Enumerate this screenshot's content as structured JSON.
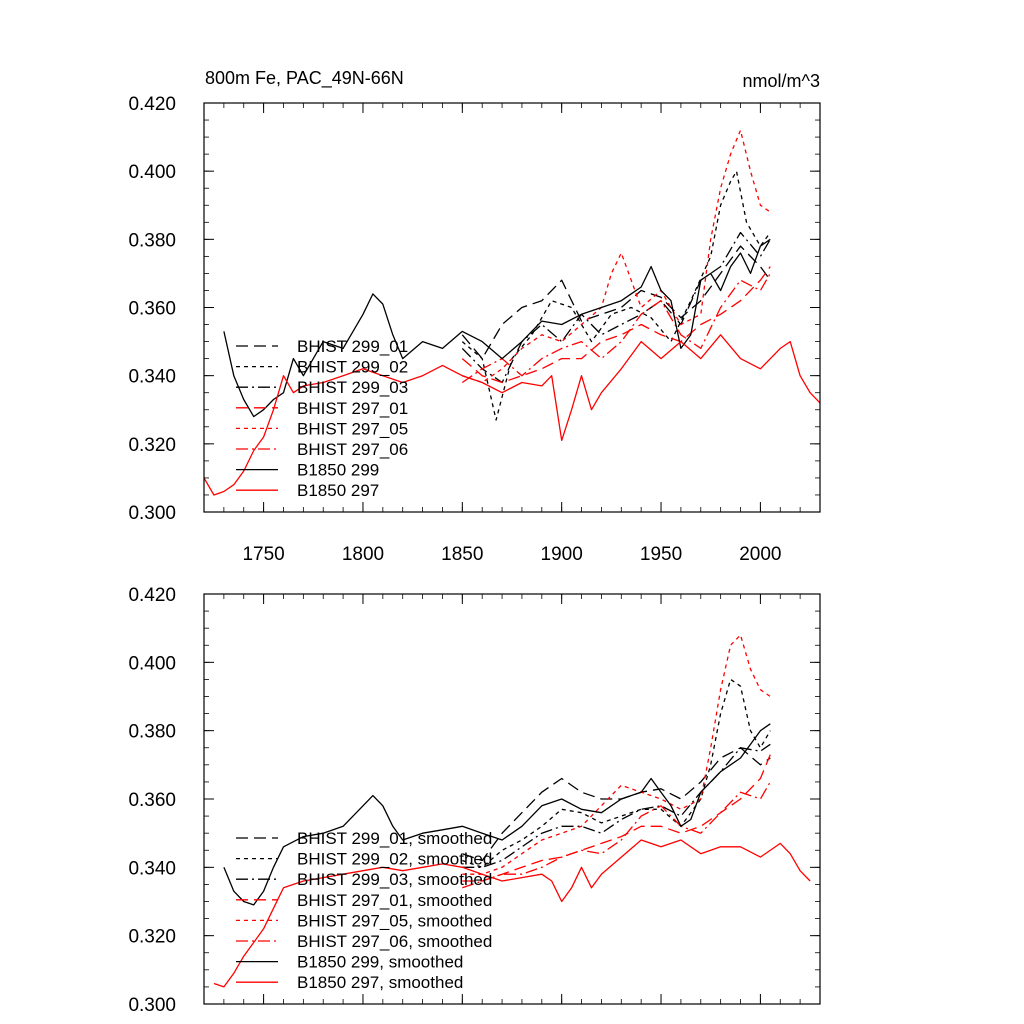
{
  "colors": {
    "black": "#000000",
    "red": "#ff0000"
  },
  "chart_data": [
    {
      "type": "line",
      "title": "800m Fe, PAC_49N-66N",
      "units": "nmol/m^3",
      "xlabel": "",
      "ylabel": "",
      "xlim": [
        1720,
        2030
      ],
      "ylim": [
        0.3,
        0.42
      ],
      "x_ticks": [
        1750,
        1800,
        1850,
        1900,
        1950,
        2000
      ],
      "y_ticks": [
        "0.300",
        "0.320",
        "0.340",
        "0.360",
        "0.380",
        "0.400",
        "0.420"
      ],
      "grid": false,
      "legend": "left",
      "series": [
        {
          "name": "BHIST 299_01",
          "color": "#000000",
          "dash": "long",
          "x": [
            1850,
            1860,
            1870,
            1880,
            1890,
            1900,
            1910,
            1920,
            1930,
            1940,
            1950,
            1960,
            1970,
            1980,
            1990,
            2000,
            2005
          ],
          "y": [
            0.352,
            0.345,
            0.355,
            0.36,
            0.362,
            0.368,
            0.356,
            0.358,
            0.36,
            0.365,
            0.363,
            0.357,
            0.362,
            0.37,
            0.378,
            0.372,
            0.368
          ]
        },
        {
          "name": "BHIST 299_02",
          "color": "#000000",
          "dash": "short",
          "x": [
            1850,
            1860,
            1867,
            1875,
            1885,
            1895,
            1905,
            1915,
            1925,
            1935,
            1945,
            1955,
            1965,
            1975,
            1980,
            1985,
            1988,
            1993,
            2000,
            2005
          ],
          "y": [
            0.35,
            0.345,
            0.327,
            0.345,
            0.352,
            0.362,
            0.36,
            0.35,
            0.358,
            0.36,
            0.357,
            0.35,
            0.362,
            0.375,
            0.39,
            0.397,
            0.4,
            0.385,
            0.378,
            0.382
          ]
        },
        {
          "name": "BHIST 299_03",
          "color": "#000000",
          "dash": "dashdot",
          "x": [
            1850,
            1860,
            1870,
            1880,
            1890,
            1900,
            1910,
            1920,
            1930,
            1940,
            1950,
            1960,
            1970,
            1980,
            1990,
            2000,
            2005
          ],
          "y": [
            0.348,
            0.342,
            0.338,
            0.35,
            0.355,
            0.35,
            0.358,
            0.352,
            0.355,
            0.358,
            0.362,
            0.355,
            0.368,
            0.372,
            0.382,
            0.375,
            0.38
          ]
        },
        {
          "name": "BHIST 297_01",
          "color": "#ff0000",
          "dash": "long",
          "x": [
            1850,
            1860,
            1870,
            1880,
            1890,
            1900,
            1910,
            1920,
            1930,
            1940,
            1950,
            1960,
            1970,
            1980,
            1990,
            2000,
            2005
          ],
          "y": [
            0.345,
            0.34,
            0.338,
            0.34,
            0.342,
            0.345,
            0.345,
            0.35,
            0.352,
            0.355,
            0.352,
            0.35,
            0.355,
            0.358,
            0.362,
            0.368,
            0.372
          ]
        },
        {
          "name": "BHIST 297_05",
          "color": "#ff0000",
          "dash": "short",
          "x": [
            1850,
            1860,
            1870,
            1880,
            1890,
            1900,
            1910,
            1920,
            1925,
            1930,
            1935,
            1940,
            1950,
            1960,
            1970,
            1975,
            1980,
            1985,
            1990,
            1995,
            2000,
            2005
          ],
          "y": [
            0.34,
            0.338,
            0.342,
            0.348,
            0.352,
            0.35,
            0.355,
            0.36,
            0.37,
            0.376,
            0.368,
            0.36,
            0.365,
            0.355,
            0.358,
            0.38,
            0.395,
            0.405,
            0.412,
            0.4,
            0.39,
            0.388
          ]
        },
        {
          "name": "BHIST 297_06",
          "color": "#ff0000",
          "dash": "dashdot",
          "x": [
            1850,
            1860,
            1870,
            1880,
            1890,
            1900,
            1910,
            1920,
            1930,
            1940,
            1950,
            1960,
            1970,
            1980,
            1990,
            2000,
            2005
          ],
          "y": [
            0.338,
            0.342,
            0.345,
            0.34,
            0.345,
            0.348,
            0.35,
            0.345,
            0.35,
            0.358,
            0.362,
            0.352,
            0.348,
            0.36,
            0.368,
            0.365,
            0.37
          ]
        },
        {
          "name": "B1850 299",
          "color": "#000000",
          "dash": "solid",
          "x": [
            1730,
            1735,
            1740,
            1745,
            1750,
            1755,
            1760,
            1765,
            1770,
            1775,
            1780,
            1790,
            1800,
            1805,
            1810,
            1815,
            1820,
            1830,
            1840,
            1850,
            1860,
            1870,
            1880,
            1890,
            1900,
            1910,
            1920,
            1930,
            1940,
            1945,
            1950,
            1955,
            1960,
            1965,
            1970,
            1975,
            1980,
            1985,
            1990,
            1995,
            2000,
            2005
          ],
          "y": [
            0.353,
            0.34,
            0.333,
            0.328,
            0.33,
            0.333,
            0.335,
            0.345,
            0.34,
            0.345,
            0.35,
            0.348,
            0.358,
            0.364,
            0.361,
            0.352,
            0.345,
            0.35,
            0.348,
            0.353,
            0.35,
            0.345,
            0.35,
            0.356,
            0.355,
            0.358,
            0.36,
            0.362,
            0.366,
            0.372,
            0.365,
            0.362,
            0.348,
            0.352,
            0.368,
            0.37,
            0.365,
            0.372,
            0.376,
            0.37,
            0.378,
            0.38
          ]
        },
        {
          "name": "B1850 297",
          "color": "#ff0000",
          "dash": "solid",
          "x": [
            1720,
            1725,
            1730,
            1735,
            1740,
            1745,
            1750,
            1755,
            1760,
            1765,
            1770,
            1780,
            1790,
            1800,
            1810,
            1820,
            1830,
            1840,
            1850,
            1860,
            1870,
            1880,
            1890,
            1895,
            1900,
            1905,
            1910,
            1915,
            1920,
            1930,
            1940,
            1950,
            1960,
            1970,
            1980,
            1990,
            2000,
            2010,
            2015,
            2020,
            2025,
            2030
          ],
          "y": [
            0.31,
            0.305,
            0.306,
            0.308,
            0.312,
            0.318,
            0.322,
            0.33,
            0.34,
            0.335,
            0.337,
            0.338,
            0.34,
            0.342,
            0.34,
            0.338,
            0.34,
            0.343,
            0.34,
            0.338,
            0.335,
            0.338,
            0.337,
            0.34,
            0.321,
            0.33,
            0.34,
            0.33,
            0.335,
            0.342,
            0.35,
            0.345,
            0.35,
            0.345,
            0.352,
            0.345,
            0.342,
            0.348,
            0.35,
            0.34,
            0.335,
            0.332
          ]
        }
      ]
    },
    {
      "type": "line",
      "xlim": [
        1720,
        2030
      ],
      "ylim": [
        0.3,
        0.42
      ],
      "y_ticks": [
        "0.300",
        "0.320",
        "0.340",
        "0.360",
        "0.380",
        "0.400",
        "0.420"
      ],
      "grid": false,
      "legend": "left",
      "series": [
        {
          "name": "BHIST 299_01, smoothed",
          "color": "#000000",
          "dash": "long",
          "x": [
            1850,
            1860,
            1870,
            1880,
            1890,
            1900,
            1910,
            1920,
            1930,
            1940,
            1950,
            1960,
            1970,
            1980,
            1990,
            2000,
            2005
          ],
          "y": [
            0.344,
            0.342,
            0.35,
            0.356,
            0.362,
            0.366,
            0.362,
            0.36,
            0.36,
            0.362,
            0.363,
            0.36,
            0.365,
            0.372,
            0.375,
            0.37,
            0.372
          ]
        },
        {
          "name": "BHIST 299_02, smoothed",
          "color": "#000000",
          "dash": "short",
          "x": [
            1850,
            1860,
            1870,
            1880,
            1890,
            1900,
            1910,
            1920,
            1930,
            1940,
            1950,
            1960,
            1970,
            1975,
            1980,
            1985,
            1990,
            1995,
            2000,
            2005
          ],
          "y": [
            0.342,
            0.34,
            0.345,
            0.348,
            0.352,
            0.357,
            0.356,
            0.353,
            0.355,
            0.357,
            0.357,
            0.352,
            0.36,
            0.37,
            0.385,
            0.395,
            0.393,
            0.38,
            0.375,
            0.38
          ]
        },
        {
          "name": "BHIST 299_03, smoothed",
          "color": "#000000",
          "dash": "dashdot",
          "x": [
            1850,
            1860,
            1870,
            1880,
            1890,
            1900,
            1910,
            1920,
            1930,
            1940,
            1950,
            1960,
            1970,
            1980,
            1990,
            2000,
            2005
          ],
          "y": [
            0.34,
            0.34,
            0.342,
            0.346,
            0.35,
            0.352,
            0.352,
            0.35,
            0.354,
            0.357,
            0.358,
            0.355,
            0.362,
            0.368,
            0.375,
            0.374,
            0.376
          ]
        },
        {
          "name": "BHIST 297_01, smoothed",
          "color": "#ff0000",
          "dash": "long",
          "x": [
            1850,
            1860,
            1870,
            1880,
            1890,
            1900,
            1910,
            1920,
            1930,
            1940,
            1950,
            1960,
            1970,
            1980,
            1990,
            2000,
            2005
          ],
          "y": [
            0.336,
            0.336,
            0.338,
            0.34,
            0.342,
            0.343,
            0.345,
            0.347,
            0.349,
            0.352,
            0.352,
            0.35,
            0.352,
            0.356,
            0.36,
            0.366,
            0.373
          ]
        },
        {
          "name": "BHIST 297_05, smoothed",
          "color": "#ff0000",
          "dash": "short",
          "x": [
            1850,
            1860,
            1870,
            1880,
            1890,
            1900,
            1910,
            1920,
            1930,
            1940,
            1950,
            1960,
            1970,
            1975,
            1980,
            1985,
            1990,
            1995,
            2000,
            2005
          ],
          "y": [
            0.338,
            0.338,
            0.34,
            0.344,
            0.348,
            0.35,
            0.352,
            0.358,
            0.364,
            0.362,
            0.36,
            0.357,
            0.36,
            0.375,
            0.392,
            0.405,
            0.408,
            0.398,
            0.392,
            0.39
          ]
        },
        {
          "name": "BHIST 297_06, smoothed",
          "color": "#ff0000",
          "dash": "dashdot",
          "x": [
            1850,
            1860,
            1870,
            1880,
            1890,
            1900,
            1910,
            1920,
            1930,
            1940,
            1950,
            1960,
            1970,
            1980,
            1990,
            2000,
            2005
          ],
          "y": [
            0.334,
            0.336,
            0.338,
            0.338,
            0.34,
            0.343,
            0.345,
            0.344,
            0.348,
            0.355,
            0.358,
            0.352,
            0.35,
            0.356,
            0.362,
            0.36,
            0.365
          ]
        },
        {
          "name": "B1850 299, smoothed",
          "color": "#000000",
          "dash": "solid",
          "x": [
            1730,
            1735,
            1740,
            1745,
            1750,
            1755,
            1760,
            1770,
            1780,
            1790,
            1800,
            1805,
            1810,
            1815,
            1820,
            1830,
            1840,
            1850,
            1860,
            1870,
            1880,
            1890,
            1900,
            1910,
            1920,
            1930,
            1940,
            1945,
            1950,
            1955,
            1960,
            1965,
            1970,
            1980,
            1990,
            2000,
            2005
          ],
          "y": [
            0.34,
            0.333,
            0.33,
            0.329,
            0.333,
            0.34,
            0.346,
            0.349,
            0.35,
            0.352,
            0.358,
            0.361,
            0.358,
            0.352,
            0.348,
            0.35,
            0.351,
            0.352,
            0.35,
            0.348,
            0.352,
            0.358,
            0.36,
            0.357,
            0.356,
            0.36,
            0.362,
            0.366,
            0.362,
            0.358,
            0.352,
            0.354,
            0.362,
            0.368,
            0.372,
            0.38,
            0.382
          ]
        },
        {
          "name": "B1850 297, smoothed",
          "color": "#ff0000",
          "dash": "solid",
          "x": [
            1725,
            1730,
            1735,
            1740,
            1745,
            1750,
            1755,
            1760,
            1770,
            1780,
            1790,
            1800,
            1810,
            1820,
            1830,
            1840,
            1850,
            1860,
            1870,
            1880,
            1890,
            1895,
            1900,
            1905,
            1910,
            1915,
            1920,
            1930,
            1940,
            1950,
            1960,
            1970,
            1980,
            1990,
            2000,
            2010,
            2015,
            2020,
            2025
          ],
          "y": [
            0.306,
            0.305,
            0.309,
            0.314,
            0.318,
            0.322,
            0.328,
            0.334,
            0.336,
            0.337,
            0.338,
            0.339,
            0.34,
            0.339,
            0.34,
            0.341,
            0.34,
            0.338,
            0.336,
            0.337,
            0.338,
            0.336,
            0.33,
            0.334,
            0.34,
            0.334,
            0.338,
            0.343,
            0.348,
            0.346,
            0.348,
            0.344,
            0.346,
            0.346,
            0.343,
            0.347,
            0.344,
            0.339,
            0.336
          ]
        }
      ]
    }
  ]
}
